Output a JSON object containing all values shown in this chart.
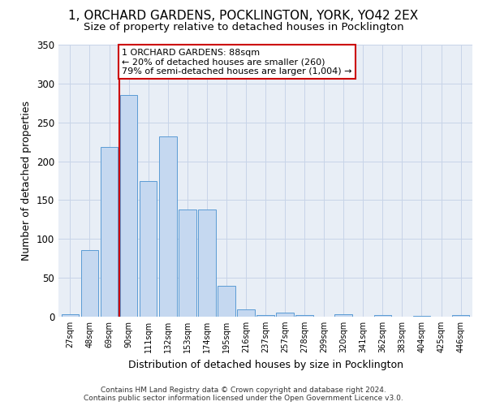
{
  "title": "1, ORCHARD GARDENS, POCKLINGTON, YORK, YO42 2EX",
  "subtitle": "Size of property relative to detached houses in Pocklington",
  "xlabel": "Distribution of detached houses by size in Pocklington",
  "ylabel": "Number of detached properties",
  "bar_labels": [
    "27sqm",
    "48sqm",
    "69sqm",
    "90sqm",
    "111sqm",
    "132sqm",
    "153sqm",
    "174sqm",
    "195sqm",
    "216sqm",
    "237sqm",
    "257sqm",
    "278sqm",
    "299sqm",
    "320sqm",
    "341sqm",
    "362sqm",
    "383sqm",
    "404sqm",
    "425sqm",
    "446sqm"
  ],
  "bar_values": [
    3,
    86,
    218,
    285,
    175,
    232,
    138,
    138,
    40,
    9,
    2,
    5,
    2,
    0,
    3,
    0,
    2,
    0,
    1,
    0,
    2
  ],
  "bar_color": "#c5d8f0",
  "bar_edge_color": "#5b9bd5",
  "annotation_text": "1 ORCHARD GARDENS: 88sqm\n← 20% of detached houses are smaller (260)\n79% of semi-detached houses are larger (1,004) →",
  "annotation_box_color": "#ffffff",
  "annotation_box_edge_color": "#cc0000",
  "red_line_color": "#cc0000",
  "ylim": [
    0,
    350
  ],
  "yticks": [
    0,
    50,
    100,
    150,
    200,
    250,
    300,
    350
  ],
  "footer_line1": "Contains HM Land Registry data © Crown copyright and database right 2024.",
  "footer_line2": "Contains public sector information licensed under the Open Government Licence v3.0.",
  "background_color": "#ffffff",
  "grid_color": "#c8d4e8",
  "title_fontsize": 11,
  "subtitle_fontsize": 9.5,
  "axis_label_fontsize": 9
}
